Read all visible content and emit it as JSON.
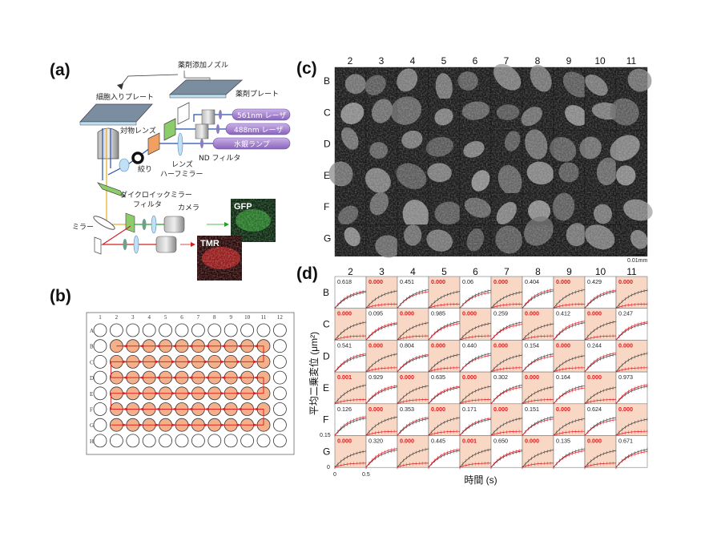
{
  "panel_labels": {
    "a": "(a)",
    "b": "(b)",
    "c": "(c)",
    "d": "(d)"
  },
  "panel_a": {
    "nozzle": "薬剤添加ノズル",
    "cell_plate": "細胞入りプレート",
    "drug_plate": "薬剤プレート",
    "laser_561": "561nm レーザ",
    "laser_488": "488nm レーザ",
    "mercury_lamp": "水銀ランプ",
    "objective": "対物レンズ",
    "nd_filter": "ND フィルタ",
    "lens": "レンズ",
    "aperture": "絞り",
    "half_mirror": "ハーフミラー",
    "dichroic": "ダイクロイックミラー",
    "filter": "フィルタ",
    "camera": "カメラ",
    "mirror": "ミラー",
    "gfp": "GFP",
    "tmr": "TMR"
  },
  "panel_b": {
    "columns": [
      "1",
      "2",
      "3",
      "4",
      "5",
      "6",
      "7",
      "8",
      "9",
      "10",
      "11",
      "12"
    ],
    "rows": [
      "A",
      "B",
      "C",
      "D",
      "E",
      "F",
      "G",
      "H"
    ],
    "well_color": "#f4b08a",
    "path_color": "#e02020"
  },
  "panel_c": {
    "columns": [
      "2",
      "3",
      "4",
      "5",
      "6",
      "7",
      "8",
      "9",
      "10",
      "11"
    ],
    "rows": [
      "B",
      "C",
      "D",
      "E",
      "F",
      "G"
    ],
    "scale_bar": "0.01mm"
  },
  "panel_d": {
    "columns": [
      "2",
      "3",
      "4",
      "5",
      "6",
      "7",
      "8",
      "9",
      "10",
      "11"
    ],
    "rows": [
      "B",
      "C",
      "D",
      "E",
      "F",
      "G"
    ],
    "y_label": "平均二乗変位 (μm²)",
    "x_label": "時間 (s)",
    "y_ticks": [
      "0.15",
      "0"
    ],
    "x_ticks": [
      "0",
      "0.5"
    ],
    "highlight_color": "#f8d8c4",
    "significant_color": "#e0141e",
    "p_values": [
      [
        "0.618",
        "0.000",
        "0.451",
        "0.000",
        "0.06",
        "0.000",
        "0.404",
        "0.000",
        "0.429",
        "0.000"
      ],
      [
        "0.000",
        "0.095",
        "0.000",
        "0.985",
        "0.000",
        "0.259",
        "0.000",
        "0.412",
        "0.000",
        "0.247"
      ],
      [
        "0.541",
        "0.000",
        "0.804",
        "0.000",
        "0.440",
        "0.000",
        "0.154",
        "0.000",
        "0.244",
        "0.000"
      ],
      [
        "0.001",
        "0.929",
        "0.000",
        "0.635",
        "0.000",
        "0.302",
        "0.000",
        "0.164",
        "0.000",
        "0.973"
      ],
      [
        "0.126",
        "0.000",
        "0.353",
        "0.000",
        "0.171",
        "0.000",
        "0.151",
        "0.000",
        "0.624",
        "0.000"
      ],
      [
        "0.000",
        "0.320",
        "0.000",
        "0.445",
        "0.001",
        "0.650",
        "0.000",
        "0.135",
        "0.000",
        "0.671"
      ]
    ]
  }
}
